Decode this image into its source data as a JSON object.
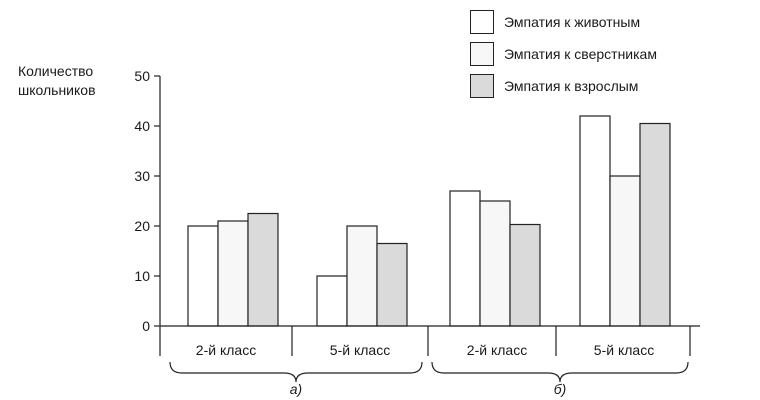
{
  "chart_data": {
    "type": "bar",
    "ylabel_lines": [
      "Количество",
      "школьников"
    ],
    "ylim": [
      0,
      50
    ],
    "yticks": [
      0,
      10,
      20,
      30,
      40,
      50
    ],
    "grid": false,
    "legend_position": "top-right",
    "groups": [
      {
        "label": "а)",
        "categories": [
          "2-й класс",
          "5-й класс"
        ]
      },
      {
        "label": "б)",
        "categories": [
          "2-й класс",
          "5-й класс"
        ]
      }
    ],
    "series": [
      {
        "name": "Эмпатия к животным",
        "color": "#ffffff",
        "values": [
          20,
          10,
          27,
          42
        ]
      },
      {
        "name": "Эмпатия к сверстникам",
        "color": "#f7f7f7",
        "values": [
          21,
          20,
          25,
          30
        ]
      },
      {
        "name": "Эмпатия к взрослым",
        "color": "#dadada",
        "values": [
          22.5,
          16.5,
          20.3,
          40.5
        ]
      }
    ]
  }
}
